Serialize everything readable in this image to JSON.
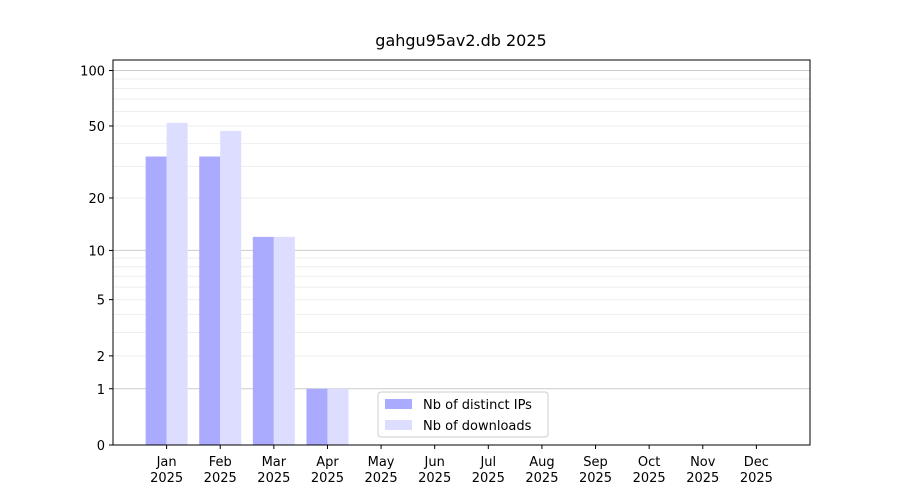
{
  "chart_data": {
    "type": "bar",
    "title": "gahgu95av2.db 2025",
    "categories": [
      [
        "Jan",
        "2025"
      ],
      [
        "Feb",
        "2025"
      ],
      [
        "Mar",
        "2025"
      ],
      [
        "Apr",
        "2025"
      ],
      [
        "May",
        "2025"
      ],
      [
        "Jun",
        "2025"
      ],
      [
        "Jul",
        "2025"
      ],
      [
        "Aug",
        "2025"
      ],
      [
        "Sep",
        "2025"
      ],
      [
        "Oct",
        "2025"
      ],
      [
        "Nov",
        "2025"
      ],
      [
        "Dec",
        "2025"
      ]
    ],
    "series": [
      {
        "name": "Nb of distinct IPs",
        "color": "#aaaaff",
        "values": [
          34,
          34,
          12,
          1,
          null,
          null,
          null,
          null,
          null,
          null,
          null,
          null
        ]
      },
      {
        "name": "Nb of downloads",
        "color": "#ddddff",
        "values": [
          52,
          47,
          12,
          1,
          null,
          null,
          null,
          null,
          null,
          null,
          null,
          null
        ]
      }
    ],
    "yscale": "log1p",
    "ylim": [
      0,
      114
    ],
    "yticks": [
      0,
      1,
      2,
      5,
      10,
      20,
      50,
      100
    ],
    "minor_yticks": [
      3,
      4,
      6,
      7,
      8,
      9,
      30,
      40,
      60,
      70,
      80,
      90
    ],
    "grid": true,
    "legend": "lower center"
  }
}
